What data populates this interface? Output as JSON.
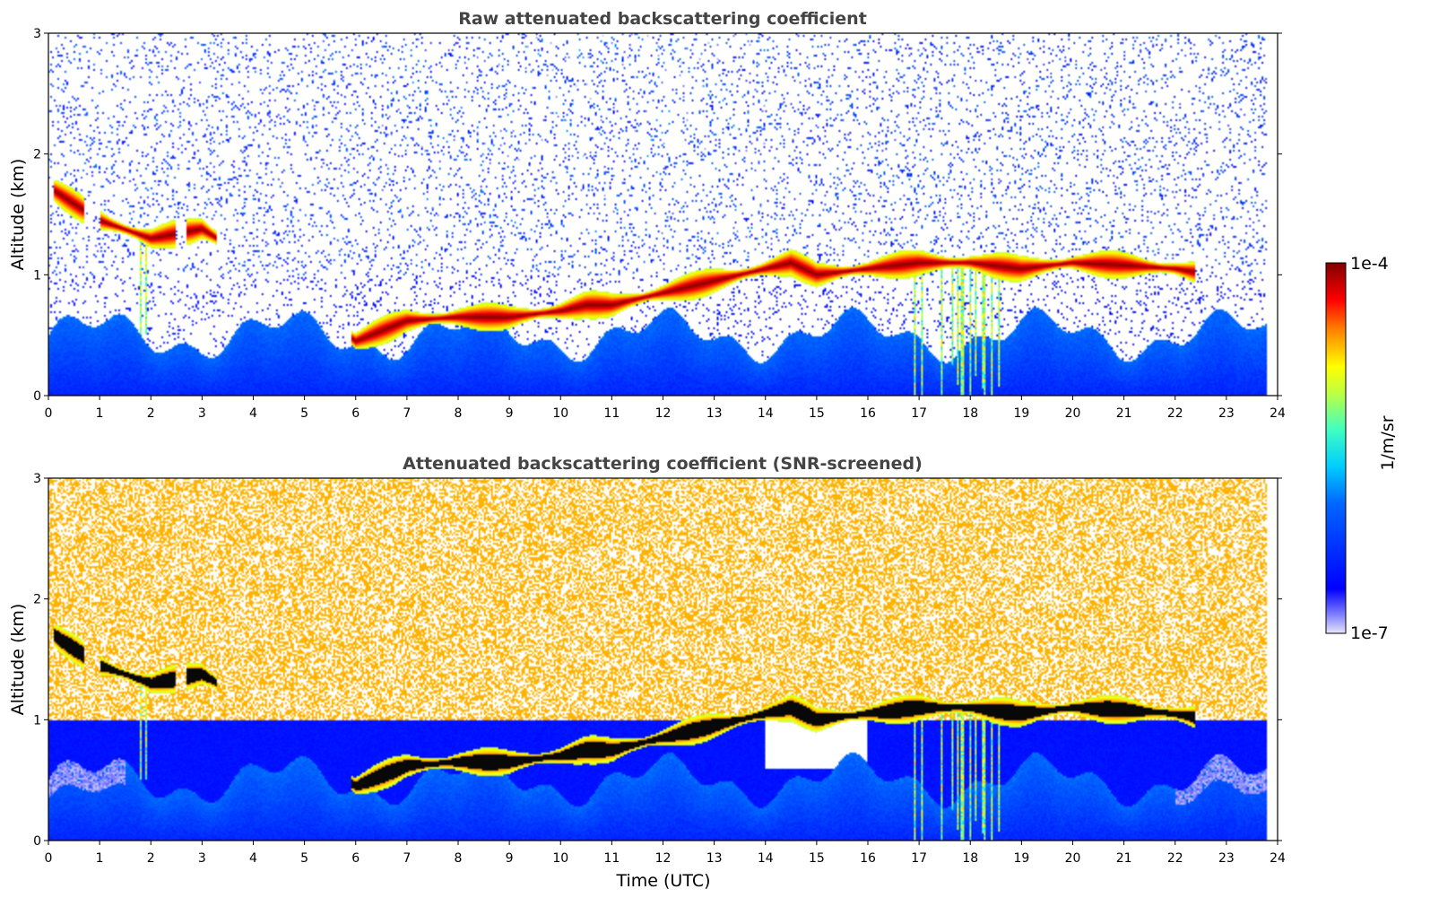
{
  "chart_data": [
    {
      "type": "heatmap",
      "title": "Raw attenuated backscattering coefficient",
      "xlabel": "",
      "ylabel": "Altitude (km)",
      "xlim": [
        0,
        24
      ],
      "ylim": [
        0,
        3
      ],
      "xticks": [
        "0",
        "1",
        "2",
        "3",
        "4",
        "5",
        "6",
        "7",
        "8",
        "9",
        "10",
        "11",
        "12",
        "13",
        "14",
        "15",
        "16",
        "17",
        "18",
        "19",
        "20",
        "21",
        "22",
        "23",
        "24"
      ],
      "yticks": [
        "0",
        "1",
        "2",
        "3"
      ],
      "screened": false,
      "cloud_layer": {
        "time": [
          0.1,
          1.0,
          2.0,
          3.0,
          3.3,
          6.0,
          7.0,
          8.0,
          9.0,
          10.0,
          10.5,
          11.0,
          12.0,
          13.0,
          14.0,
          14.5,
          15.0,
          16.0,
          17.0,
          18.0,
          19.0,
          20.0,
          21.0,
          22.0,
          22.4
        ],
        "altitude_km": [
          1.7,
          1.45,
          1.3,
          1.38,
          1.3,
          0.45,
          0.62,
          0.65,
          0.65,
          0.7,
          0.75,
          0.75,
          0.85,
          0.95,
          1.05,
          1.1,
          1.0,
          1.05,
          1.1,
          1.1,
          1.05,
          1.1,
          1.08,
          1.05,
          1.02
        ]
      }
    },
    {
      "type": "heatmap",
      "title": "Attenuated backscattering coefficient (SNR-screened)",
      "xlabel": "Time (UTC)",
      "ylabel": "Altitude (km)",
      "xlim": [
        0,
        24
      ],
      "ylim": [
        0,
        3
      ],
      "xticks": [
        "0",
        "1",
        "2",
        "3",
        "4",
        "5",
        "6",
        "7",
        "8",
        "9",
        "10",
        "11",
        "12",
        "13",
        "14",
        "15",
        "16",
        "17",
        "18",
        "19",
        "20",
        "21",
        "22",
        "23",
        "24"
      ],
      "yticks": [
        "0",
        "1",
        "2",
        "3"
      ],
      "screened": true,
      "cloud_layer": {
        "time": [
          0.1,
          1.0,
          2.0,
          3.0,
          3.3,
          6.0,
          7.0,
          8.0,
          9.0,
          10.0,
          10.5,
          11.0,
          12.0,
          13.0,
          14.0,
          14.5,
          15.0,
          16.0,
          17.0,
          18.0,
          19.0,
          20.0,
          21.0,
          22.0,
          22.4
        ],
        "altitude_km": [
          1.7,
          1.45,
          1.3,
          1.38,
          1.3,
          0.45,
          0.62,
          0.65,
          0.65,
          0.7,
          0.75,
          0.75,
          0.85,
          0.95,
          1.05,
          1.1,
          1.0,
          1.05,
          1.1,
          1.1,
          1.05,
          1.1,
          1.08,
          1.05,
          1.02
        ]
      }
    }
  ],
  "colorbar": {
    "label": "1/m/sr",
    "max_label": "1e-4",
    "min_label": "1e-7",
    "scale": "log",
    "colormap": [
      "#e6e6fa",
      "#0000ff",
      "#0080ff",
      "#00e0e0",
      "#40ff80",
      "#ffff00",
      "#ff8000",
      "#ff0000",
      "#800000"
    ]
  }
}
